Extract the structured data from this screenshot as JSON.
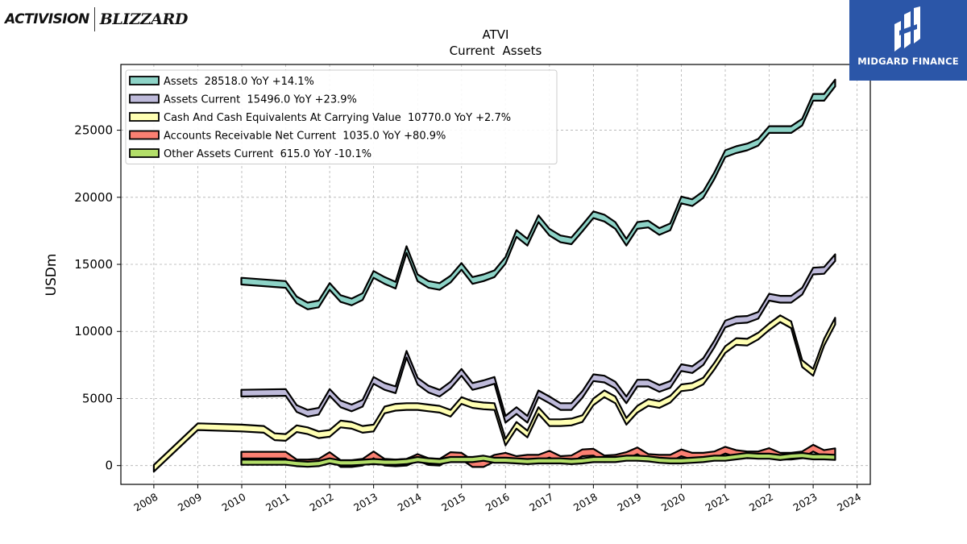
{
  "chart_data": {
    "type": "area",
    "title": "ATVI",
    "subtitle": "Current  Assets",
    "ylabel": "USDm",
    "xlabel": "",
    "ylim": [
      -1400,
      29900
    ],
    "xlim": [
      2007.25,
      2024.3
    ],
    "grid": true,
    "legend_position": "top-left",
    "y_ticks": [
      0,
      5000,
      10000,
      15000,
      20000,
      25000
    ],
    "x_ticks": [
      2008,
      2009,
      2010,
      2011,
      2012,
      2013,
      2014,
      2015,
      2016,
      2017,
      2018,
      2019,
      2020,
      2021,
      2022,
      2023,
      2024
    ],
    "x_tick_labels": [
      "2008",
      "2009",
      "2010",
      "2011",
      "2012",
      "2013",
      "2014",
      "2015",
      "2016",
      "2017",
      "2018",
      "2019",
      "2020",
      "2021",
      "2022",
      "2023",
      "2024"
    ],
    "series": [
      {
        "name": "Assets",
        "legend": "Assets  28518.0 YoY +14.1%",
        "color": "#8dd3c7",
        "band": 500,
        "points": [
          [
            2009.99,
            13750
          ],
          [
            2011.0,
            13500
          ],
          [
            2011.25,
            12350
          ],
          [
            2011.5,
            11900
          ],
          [
            2011.75,
            12050
          ],
          [
            2012.0,
            13350
          ],
          [
            2012.25,
            12450
          ],
          [
            2012.5,
            12200
          ],
          [
            2012.75,
            12600
          ],
          [
            2013.0,
            14250
          ],
          [
            2013.25,
            13800
          ],
          [
            2013.5,
            13450
          ],
          [
            2013.75,
            16100
          ],
          [
            2014.0,
            14000
          ],
          [
            2014.25,
            13500
          ],
          [
            2014.5,
            13350
          ],
          [
            2014.75,
            13900
          ],
          [
            2015.0,
            14850
          ],
          [
            2015.25,
            13800
          ],
          [
            2015.5,
            14000
          ],
          [
            2015.75,
            14300
          ],
          [
            2016.0,
            15300
          ],
          [
            2016.25,
            17300
          ],
          [
            2016.5,
            16650
          ],
          [
            2016.75,
            18400
          ],
          [
            2017.0,
            17400
          ],
          [
            2017.25,
            16900
          ],
          [
            2017.5,
            16750
          ],
          [
            2017.75,
            17700
          ],
          [
            2018.0,
            18700
          ],
          [
            2018.25,
            18450
          ],
          [
            2018.5,
            17900
          ],
          [
            2018.75,
            16650
          ],
          [
            2019.0,
            17900
          ],
          [
            2019.25,
            18000
          ],
          [
            2019.5,
            17450
          ],
          [
            2019.75,
            17800
          ],
          [
            2020.0,
            19800
          ],
          [
            2020.25,
            19600
          ],
          [
            2020.5,
            20200
          ],
          [
            2020.75,
            21600
          ],
          [
            2021.0,
            23250
          ],
          [
            2021.25,
            23550
          ],
          [
            2021.5,
            23750
          ],
          [
            2021.75,
            24100
          ],
          [
            2022.0,
            25050
          ],
          [
            2022.25,
            25050
          ],
          [
            2022.5,
            25050
          ],
          [
            2022.75,
            25600
          ],
          [
            2023.0,
            27450
          ],
          [
            2023.25,
            27450
          ],
          [
            2023.5,
            28518
          ]
        ]
      },
      {
        "name": "Assets Current",
        "legend": "Assets Current  15496.0 YoY +23.9%",
        "color": "#bebada",
        "band": 500,
        "points": [
          [
            2009.99,
            5400
          ],
          [
            2011.0,
            5450
          ],
          [
            2011.25,
            4250
          ],
          [
            2011.5,
            3900
          ],
          [
            2011.75,
            4050
          ],
          [
            2012.0,
            5450
          ],
          [
            2012.25,
            4600
          ],
          [
            2012.5,
            4300
          ],
          [
            2012.75,
            4650
          ],
          [
            2013.0,
            6350
          ],
          [
            2013.25,
            5900
          ],
          [
            2013.5,
            5650
          ],
          [
            2013.75,
            8300
          ],
          [
            2014.0,
            6300
          ],
          [
            2014.25,
            5700
          ],
          [
            2014.5,
            5400
          ],
          [
            2014.75,
            6000
          ],
          [
            2015.0,
            6950
          ],
          [
            2015.25,
            5900
          ],
          [
            2015.5,
            6100
          ],
          [
            2015.75,
            6350
          ],
          [
            2016.0,
            3450
          ],
          [
            2016.25,
            4100
          ],
          [
            2016.5,
            3450
          ],
          [
            2016.75,
            5350
          ],
          [
            2017.0,
            4900
          ],
          [
            2017.25,
            4400
          ],
          [
            2017.5,
            4400
          ],
          [
            2017.75,
            5300
          ],
          [
            2018.0,
            6550
          ],
          [
            2018.25,
            6450
          ],
          [
            2018.5,
            6000
          ],
          [
            2018.75,
            4900
          ],
          [
            2019.0,
            6150
          ],
          [
            2019.25,
            6150
          ],
          [
            2019.5,
            5750
          ],
          [
            2019.75,
            6050
          ],
          [
            2020.0,
            7300
          ],
          [
            2020.25,
            7150
          ],
          [
            2020.5,
            7750
          ],
          [
            2020.75,
            9050
          ],
          [
            2021.0,
            10550
          ],
          [
            2021.25,
            10850
          ],
          [
            2021.5,
            10900
          ],
          [
            2021.75,
            11200
          ],
          [
            2022.0,
            12550
          ],
          [
            2022.25,
            12400
          ],
          [
            2022.5,
            12400
          ],
          [
            2022.75,
            13000
          ],
          [
            2023.0,
            14500
          ],
          [
            2023.25,
            14550
          ],
          [
            2023.5,
            15496
          ]
        ]
      },
      {
        "name": "Cash And Cash Equivalents At Carrying Value",
        "legend": "Cash And Cash Equivalents At Carrying Value  10770.0 YoY +2.7%",
        "color": "#ffffb3",
        "band": 500,
        "points": [
          [
            2008.0,
            -200
          ],
          [
            2009.0,
            2900
          ],
          [
            2010.0,
            2800
          ],
          [
            2010.5,
            2700
          ],
          [
            2010.75,
            2150
          ],
          [
            2011.0,
            2100
          ],
          [
            2011.25,
            2750
          ],
          [
            2011.5,
            2600
          ],
          [
            2011.75,
            2300
          ],
          [
            2012.0,
            2400
          ],
          [
            2012.25,
            3100
          ],
          [
            2012.5,
            3000
          ],
          [
            2012.75,
            2700
          ],
          [
            2013.0,
            2800
          ],
          [
            2013.25,
            4150
          ],
          [
            2013.5,
            4350
          ],
          [
            2013.75,
            4400
          ],
          [
            2014.0,
            4400
          ],
          [
            2014.25,
            4300
          ],
          [
            2014.5,
            4200
          ],
          [
            2014.75,
            3900
          ],
          [
            2015.0,
            4850
          ],
          [
            2015.25,
            4550
          ],
          [
            2015.5,
            4450
          ],
          [
            2015.75,
            4400
          ],
          [
            2016.0,
            1750
          ],
          [
            2016.25,
            3000
          ],
          [
            2016.5,
            2350
          ],
          [
            2016.75,
            4100
          ],
          [
            2017.0,
            3200
          ],
          [
            2017.25,
            3200
          ],
          [
            2017.5,
            3250
          ],
          [
            2017.75,
            3500
          ],
          [
            2018.0,
            4750
          ],
          [
            2018.25,
            5350
          ],
          [
            2018.5,
            4900
          ],
          [
            2018.75,
            3300
          ],
          [
            2019.0,
            4200
          ],
          [
            2019.25,
            4700
          ],
          [
            2019.5,
            4550
          ],
          [
            2019.75,
            4950
          ],
          [
            2020.0,
            5800
          ],
          [
            2020.25,
            5900
          ],
          [
            2020.5,
            6300
          ],
          [
            2020.75,
            7400
          ],
          [
            2021.0,
            8650
          ],
          [
            2021.25,
            9250
          ],
          [
            2021.5,
            9200
          ],
          [
            2021.75,
            9650
          ],
          [
            2022.0,
            10350
          ],
          [
            2022.25,
            10950
          ],
          [
            2022.5,
            10500
          ],
          [
            2022.75,
            7600
          ],
          [
            2023.0,
            6950
          ],
          [
            2023.25,
            9200
          ],
          [
            2023.5,
            10770
          ]
        ]
      },
      {
        "name": "Accounts Receivable Net Current",
        "legend": "Accounts Receivable Net Current  1035.0 YoY +80.9%",
        "color": "#fb8072",
        "band": 500,
        "points": [
          [
            2009.99,
            780
          ],
          [
            2011.0,
            780
          ],
          [
            2011.25,
            200
          ],
          [
            2011.5,
            200
          ],
          [
            2011.75,
            250
          ],
          [
            2012.0,
            750
          ],
          [
            2012.25,
            150
          ],
          [
            2012.5,
            150
          ],
          [
            2012.75,
            250
          ],
          [
            2013.0,
            800
          ],
          [
            2013.25,
            250
          ],
          [
            2013.5,
            200
          ],
          [
            2013.75,
            250
          ],
          [
            2014.0,
            600
          ],
          [
            2014.25,
            300
          ],
          [
            2014.5,
            250
          ],
          [
            2014.75,
            750
          ],
          [
            2015.0,
            700
          ],
          [
            2015.25,
            150
          ],
          [
            2015.5,
            150
          ],
          [
            2015.75,
            550
          ],
          [
            2016.0,
            700
          ],
          [
            2016.25,
            450
          ],
          [
            2016.5,
            550
          ],
          [
            2016.75,
            550
          ],
          [
            2017.0,
            850
          ],
          [
            2017.25,
            450
          ],
          [
            2017.5,
            500
          ],
          [
            2017.75,
            950
          ],
          [
            2018.0,
            1000
          ],
          [
            2018.25,
            500
          ],
          [
            2018.5,
            550
          ],
          [
            2018.75,
            750
          ],
          [
            2019.0,
            1100
          ],
          [
            2019.25,
            600
          ],
          [
            2019.5,
            550
          ],
          [
            2019.75,
            550
          ],
          [
            2020.0,
            950
          ],
          [
            2020.25,
            700
          ],
          [
            2020.5,
            700
          ],
          [
            2020.75,
            800
          ],
          [
            2021.0,
            1150
          ],
          [
            2021.25,
            900
          ],
          [
            2021.5,
            800
          ],
          [
            2021.75,
            800
          ],
          [
            2022.0,
            1050
          ],
          [
            2022.25,
            700
          ],
          [
            2022.5,
            700
          ],
          [
            2022.75,
            800
          ],
          [
            2023.0,
            1300
          ],
          [
            2023.25,
            900
          ],
          [
            2023.5,
            1035
          ]
        ]
      },
      {
        "name": "Other Assets Current",
        "legend": "Other Assets Current  615.0 YoY -10.1%",
        "color": "#b3de69",
        "band": 380,
        "points": [
          [
            2009.99,
            250
          ],
          [
            2011.0,
            250
          ],
          [
            2011.25,
            150
          ],
          [
            2011.5,
            100
          ],
          [
            2011.75,
            150
          ],
          [
            2012.0,
            350
          ],
          [
            2012.25,
            200
          ],
          [
            2012.5,
            200
          ],
          [
            2012.75,
            250
          ],
          [
            2013.0,
            300
          ],
          [
            2013.25,
            250
          ],
          [
            2013.5,
            250
          ],
          [
            2013.75,
            300
          ],
          [
            2014.0,
            450
          ],
          [
            2014.25,
            350
          ],
          [
            2014.5,
            300
          ],
          [
            2014.75,
            450
          ],
          [
            2015.0,
            450
          ],
          [
            2015.25,
            450
          ],
          [
            2015.5,
            550
          ],
          [
            2015.75,
            400
          ],
          [
            2016.0,
            400
          ],
          [
            2016.25,
            350
          ],
          [
            2016.5,
            300
          ],
          [
            2016.75,
            350
          ],
          [
            2017.0,
            350
          ],
          [
            2017.25,
            350
          ],
          [
            2017.5,
            300
          ],
          [
            2017.75,
            350
          ],
          [
            2018.0,
            450
          ],
          [
            2018.25,
            450
          ],
          [
            2018.5,
            450
          ],
          [
            2018.75,
            550
          ],
          [
            2019.0,
            550
          ],
          [
            2019.25,
            500
          ],
          [
            2019.5,
            400
          ],
          [
            2019.75,
            350
          ],
          [
            2020.0,
            350
          ],
          [
            2020.25,
            400
          ],
          [
            2020.5,
            450
          ],
          [
            2020.75,
            550
          ],
          [
            2021.0,
            550
          ],
          [
            2021.25,
            650
          ],
          [
            2021.5,
            750
          ],
          [
            2021.75,
            700
          ],
          [
            2022.0,
            700
          ],
          [
            2022.25,
            600
          ],
          [
            2022.5,
            700
          ],
          [
            2022.75,
            750
          ],
          [
            2023.0,
            650
          ],
          [
            2023.25,
            650
          ],
          [
            2023.5,
            615
          ]
        ]
      }
    ]
  },
  "logos": {
    "left_brand": "ACTIVISION",
    "left_brand_2": "BLIZZARD",
    "right_brand": "MIDGARD FINANCE",
    "right_brand_color": "#2b56a8"
  }
}
